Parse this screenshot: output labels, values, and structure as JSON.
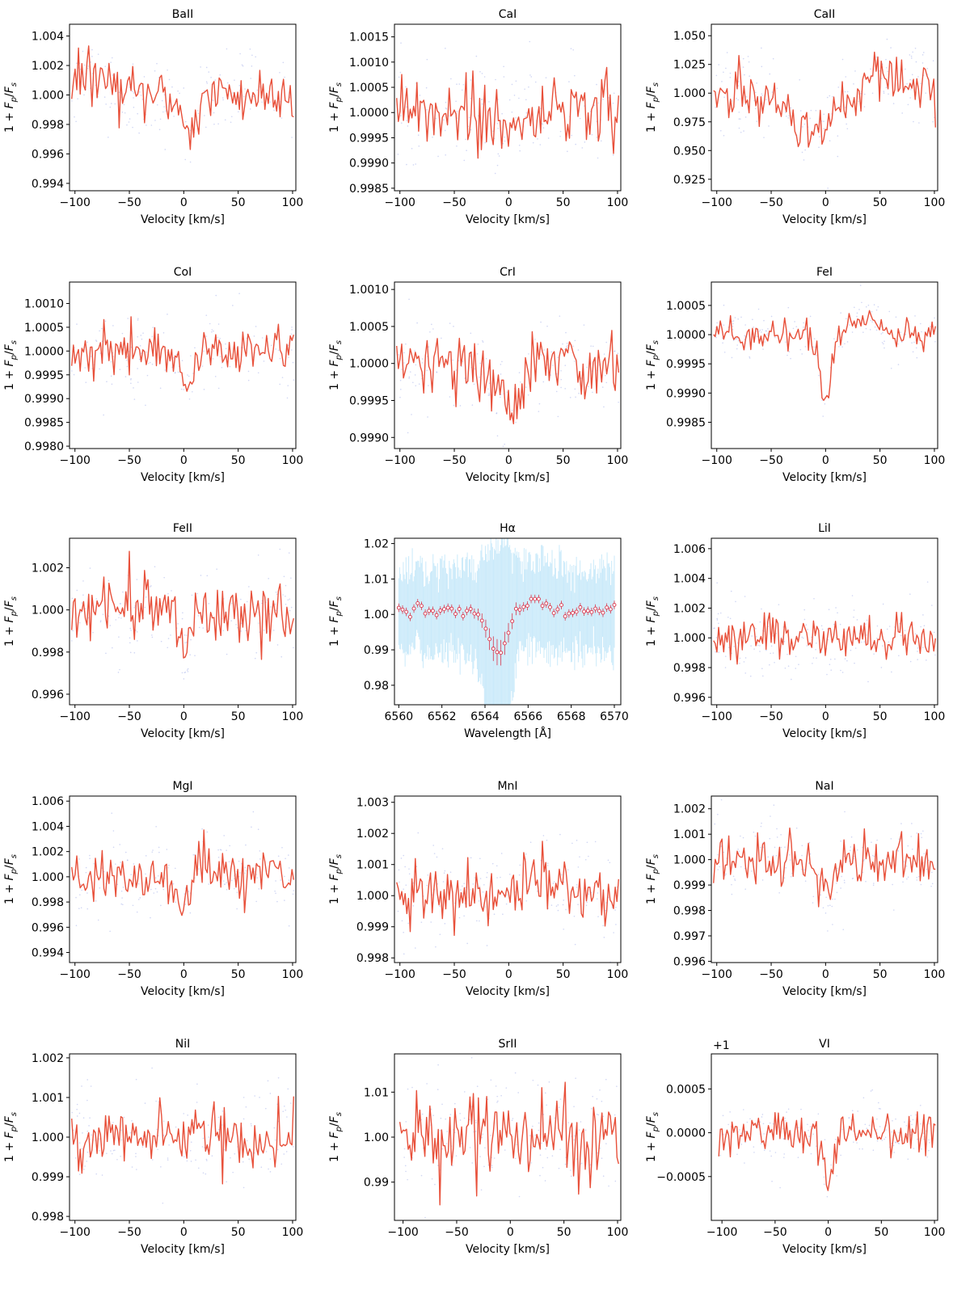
{
  "colors": {
    "line": "#e8503a",
    "scatter": "#a9b5ea",
    "errorbar": "#9fd8f5",
    "marker": "#d9344a"
  },
  "ylabel": "1 + F_p/F_s",
  "chart_data": [
    {
      "type": "line",
      "title": "BaII",
      "xlabel": "Velocity [km/s]",
      "ylabel": "1 + F_p/F_s",
      "xlim": [
        -105,
        103
      ],
      "ylim": [
        0.9935,
        1.0048
      ],
      "xticks": [
        -100,
        -50,
        0,
        50,
        100
      ],
      "yticks": [
        0.994,
        0.996,
        0.998,
        1.0,
        1.002,
        1.004
      ],
      "yticklabels": [
        "0.994",
        "0.996",
        "0.998",
        "1.000",
        "1.002",
        "1.004"
      ],
      "base": 1.0,
      "noise": 0.0009,
      "seed": 11,
      "features": [
        {
          "center": -85,
          "depth": -0.0013,
          "width": 15
        },
        {
          "center": 5,
          "depth": 0.0021,
          "width": 8
        }
      ]
    },
    {
      "type": "line",
      "title": "CaI",
      "xlabel": "Velocity [km/s]",
      "ylabel": "1 + F_p/F_s",
      "xlim": [
        -105,
        103
      ],
      "ylim": [
        0.99845,
        1.00175
      ],
      "xticks": [
        -100,
        -50,
        0,
        50,
        100
      ],
      "yticks": [
        0.9985,
        0.999,
        0.9995,
        1.0,
        1.0005,
        1.001,
        1.0015
      ],
      "yticklabels": [
        "0.9985",
        "0.9990",
        "0.9995",
        "1.0000",
        "1.0005",
        "1.0010",
        "1.0015"
      ],
      "base": 1.0,
      "noise": 0.00035,
      "seed": 22,
      "features": [
        {
          "center": 0,
          "depth": 0.0004,
          "width": 8
        }
      ]
    },
    {
      "type": "line",
      "title": "CaII",
      "xlabel": "Velocity [km/s]",
      "ylabel": "1 + F_p/F_s",
      "xlim": [
        -105,
        103
      ],
      "ylim": [
        0.915,
        1.06
      ],
      "xticks": [
        -100,
        -50,
        0,
        50,
        100
      ],
      "yticks": [
        0.925,
        0.95,
        0.975,
        1.0,
        1.025,
        1.05
      ],
      "yticklabels": [
        "0.925",
        "0.950",
        "0.975",
        "1.000",
        "1.025",
        "1.050"
      ],
      "base": 1.0,
      "noise": 0.012,
      "seed": 33,
      "features": [
        {
          "center": -10,
          "depth": 0.035,
          "width": 18
        },
        {
          "center": 60,
          "depth": -0.012,
          "width": 40
        }
      ]
    },
    {
      "type": "line",
      "title": "CoI",
      "xlabel": "Velocity [km/s]",
      "ylabel": "1 + F_p/F_s",
      "xlim": [
        -105,
        103
      ],
      "ylim": [
        0.99795,
        1.00145
      ],
      "xticks": [
        -100,
        -50,
        0,
        50,
        100
      ],
      "yticks": [
        0.998,
        0.9985,
        0.999,
        0.9995,
        1.0,
        1.0005,
        1.001
      ],
      "yticklabels": [
        "0.9980",
        "0.9985",
        "0.9990",
        "0.9995",
        "1.0000",
        "1.0005",
        "1.0010"
      ],
      "base": 1.0,
      "noise": 0.00028,
      "seed": 44,
      "features": [
        {
          "center": 2,
          "depth": 0.0009,
          "width": 6
        }
      ]
    },
    {
      "type": "line",
      "title": "CrI",
      "xlabel": "Velocity [km/s]",
      "ylabel": "1 + F_p/F_s",
      "xlim": [
        -105,
        103
      ],
      "ylim": [
        0.99885,
        1.0011
      ],
      "xticks": [
        -100,
        -50,
        0,
        50,
        100
      ],
      "yticks": [
        0.999,
        0.9995,
        1.0,
        1.0005,
        1.001
      ],
      "yticklabels": [
        "0.9990",
        "0.9995",
        "1.0000",
        "1.0005",
        "1.0010"
      ],
      "base": 1.0,
      "noise": 0.00022,
      "seed": 55,
      "features": [
        {
          "center": 0,
          "depth": 0.0006,
          "width": 12
        }
      ]
    },
    {
      "type": "line",
      "title": "FeI",
      "xlabel": "Velocity [km/s]",
      "ylabel": "1 + F_p/F_s",
      "xlim": [
        -105,
        103
      ],
      "ylim": [
        0.99805,
        1.0009
      ],
      "xticks": [
        -100,
        -50,
        0,
        50,
        100
      ],
      "yticks": [
        0.9985,
        0.999,
        0.9995,
        1.0,
        1.0005
      ],
      "yticklabels": [
        "0.9985",
        "0.9990",
        "0.9995",
        "1.0000",
        "1.0005"
      ],
      "base": 1.0,
      "noise": 0.00012,
      "seed": 66,
      "features": [
        {
          "center": 0,
          "depth": 0.0012,
          "width": 5
        },
        {
          "center": 35,
          "depth": -0.0003,
          "width": 12
        }
      ]
    },
    {
      "type": "line",
      "title": "FeII",
      "xlabel": "Velocity [km/s]",
      "ylabel": "1 + F_p/F_s",
      "xlim": [
        -105,
        103
      ],
      "ylim": [
        0.9955,
        1.0034
      ],
      "xticks": [
        -100,
        -50,
        0,
        50,
        100
      ],
      "yticks": [
        0.996,
        0.998,
        1.0,
        1.002
      ],
      "yticklabels": [
        "0.996",
        "0.998",
        "1.000",
        "1.002"
      ],
      "base": 1.0,
      "noise": 0.0008,
      "seed": 77,
      "features": [
        {
          "center": 0,
          "depth": 0.0022,
          "width": 5
        }
      ]
    },
    {
      "type": "errorbar",
      "title": "Hα",
      "xlabel": "Wavelength [Å]",
      "ylabel": "1 + F_p/F_s",
      "xlim": [
        6559.8,
        6570.3
      ],
      "ylim": [
        0.9745,
        1.0215
      ],
      "xticks": [
        6560,
        6562,
        6564,
        6566,
        6568,
        6570
      ],
      "xticklabels": [
        "6560",
        "6562",
        "6564",
        "6566",
        "6568",
        "6570"
      ],
      "yticks": [
        0.98,
        0.99,
        1.0,
        1.01,
        1.02
      ],
      "yticklabels": [
        "0.98",
        "0.99",
        "1.00",
        "1.01",
        "1.02"
      ],
      "base": 1.001,
      "noise": 0.0008,
      "seed": 88,
      "features": [
        {
          "center": 6564.6,
          "depth": 0.012,
          "width": 0.45
        },
        {
          "center": 6566.1,
          "depth": -0.002,
          "width": 0.6
        }
      ]
    },
    {
      "type": "line",
      "title": "LiI",
      "xlabel": "Velocity [km/s]",
      "ylabel": "1 + F_p/F_s",
      "xlim": [
        -105,
        103
      ],
      "ylim": [
        0.9955,
        1.0067
      ],
      "xticks": [
        -100,
        -50,
        0,
        50,
        100
      ],
      "yticks": [
        0.996,
        0.998,
        1.0,
        1.002,
        1.004,
        1.006
      ],
      "yticklabels": [
        "0.996",
        "0.998",
        "1.000",
        "1.002",
        "1.004",
        "1.006"
      ],
      "base": 1.0,
      "noise": 0.0008,
      "seed": 99,
      "features": []
    },
    {
      "type": "line",
      "title": "MgI",
      "xlabel": "Velocity [km/s]",
      "ylabel": "1 + F_p/F_s",
      "xlim": [
        -105,
        103
      ],
      "ylim": [
        0.9932,
        1.0064
      ],
      "xticks": [
        -100,
        -50,
        0,
        50,
        100
      ],
      "yticks": [
        0.994,
        0.996,
        0.998,
        1.0,
        1.002,
        1.004,
        1.006
      ],
      "yticklabels": [
        "0.994",
        "0.996",
        "0.998",
        "1.000",
        "1.002",
        "1.004",
        "1.006"
      ],
      "base": 1.0,
      "noise": 0.001,
      "seed": 111,
      "features": [
        {
          "center": 0,
          "depth": 0.0022,
          "width": 8
        },
        {
          "center": 15,
          "depth": -0.0018,
          "width": 6
        }
      ]
    },
    {
      "type": "line",
      "title": "MnI",
      "xlabel": "Velocity [km/s]",
      "ylabel": "1 + F_p/F_s",
      "xlim": [
        -105,
        103
      ],
      "ylim": [
        0.99785,
        1.0032
      ],
      "xticks": [
        -100,
        -50,
        0,
        50,
        100
      ],
      "yticks": [
        0.998,
        0.999,
        1.0,
        1.001,
        1.002,
        1.003
      ],
      "yticklabels": [
        "0.998",
        "0.999",
        "1.000",
        "1.001",
        "1.002",
        "1.003"
      ],
      "base": 1.0,
      "noise": 0.0005,
      "seed": 122,
      "features": [
        {
          "center": 30,
          "depth": -0.0007,
          "width": 12
        }
      ]
    },
    {
      "type": "line",
      "title": "NaI",
      "xlabel": "Velocity [km/s]",
      "ylabel": "1 + F_p/F_s",
      "xlim": [
        -105,
        103
      ],
      "ylim": [
        0.99595,
        1.0025
      ],
      "xticks": [
        -100,
        -50,
        0,
        50,
        100
      ],
      "yticks": [
        0.996,
        0.997,
        0.998,
        0.999,
        1.0,
        1.001,
        1.002
      ],
      "yticklabels": [
        "0.996",
        "0.997",
        "0.998",
        "0.999",
        "1.000",
        "1.001",
        "1.002"
      ],
      "base": 1.0,
      "noise": 0.0005,
      "seed": 133,
      "features": [
        {
          "center": 0,
          "depth": 0.0012,
          "width": 8
        }
      ]
    },
    {
      "type": "line",
      "title": "NiI",
      "xlabel": "Velocity [km/s]",
      "ylabel": "1 + F_p/F_s",
      "xlim": [
        -105,
        103
      ],
      "ylim": [
        0.9979,
        1.0021
      ],
      "xticks": [
        -100,
        -50,
        0,
        50,
        100
      ],
      "yticks": [
        0.998,
        0.999,
        1.0,
        1.001,
        1.002
      ],
      "yticklabels": [
        "0.998",
        "0.999",
        "1.000",
        "1.001",
        "1.002"
      ],
      "base": 1.0,
      "noise": 0.0004,
      "seed": 144,
      "features": []
    },
    {
      "type": "line",
      "title": "SrII",
      "xlabel": "Velocity [km/s]",
      "ylabel": "1 + F_p/F_s",
      "xlim": [
        -108,
        103
      ],
      "ylim": [
        0.9815,
        1.0185
      ],
      "xticks": [
        -100,
        -50,
        0,
        50,
        100
      ],
      "yticks": [
        0.99,
        1.0,
        1.01
      ],
      "yticklabels": [
        "0.99",
        "1.00",
        "1.01"
      ],
      "base": 1.0,
      "noise": 0.0045,
      "seed": 155,
      "features": []
    },
    {
      "type": "line",
      "title": "VI",
      "xlabel": "Velocity [km/s]",
      "ylabel": "1 + F_p/F_s",
      "offset_label": "+1",
      "xlim": [
        -110,
        103
      ],
      "ylim": [
        -0.001,
        0.0009
      ],
      "xticks": [
        -100,
        -50,
        0,
        50,
        100
      ],
      "yticks": [
        -0.0005,
        0.0,
        0.0005
      ],
      "yticklabels": [
        "−0.0005",
        "0.0000",
        "0.0005"
      ],
      "base": 0.0,
      "noise": 0.00012,
      "seed": 166,
      "features": [
        {
          "center": 0,
          "depth": 0.00055,
          "width": 5
        }
      ]
    }
  ]
}
